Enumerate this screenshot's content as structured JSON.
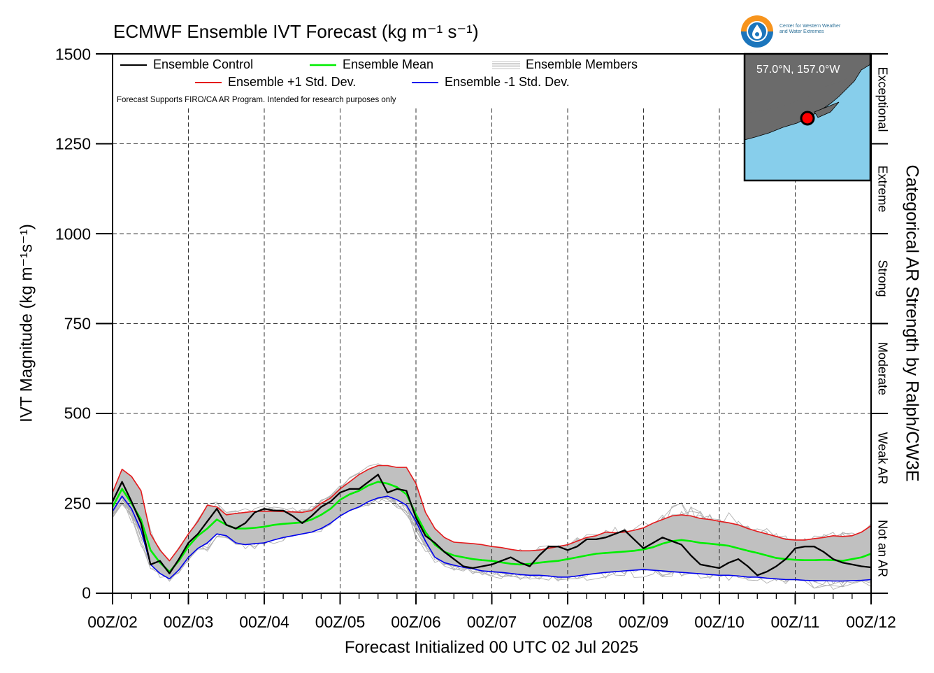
{
  "header": {
    "title": "ECMWF Ensemble IVT Forecast (kg m⁻¹ s⁻¹)",
    "right_axis_label": "Categorical AR Strength by Ralph/CW3E",
    "note": "Forecast Supports FIRO/CA AR Program. Intended for research purposes only"
  },
  "logo": {
    "text_line1": "Center for Western Weather",
    "text_line2": "and Water Extremes",
    "colors": {
      "ring": "#f7941d",
      "water": "#1b75bc"
    },
    "icon": "water-drop-icon"
  },
  "inset_map": {
    "location_label": "57.0°N, 157.0°W",
    "colors": {
      "ocean": "#87ceeb",
      "land": "#6b6b6b",
      "marker": "#ff0000"
    }
  },
  "categories": [
    "Not an AR",
    "Weak AR",
    "Moderate",
    "Strong",
    "Extreme",
    "Exceptional"
  ],
  "colors": {
    "control": "#000000",
    "mean": "#00ee00",
    "plus_std": "#e41a1c",
    "minus_std": "#0000ee",
    "members": "#b0b0b0",
    "spread_fill": "#c0c0c0"
  },
  "chart_data": {
    "type": "line",
    "title": "ECMWF Ensemble IVT Forecast (kg m⁻¹ s⁻¹)",
    "xlabel": "Forecast Initialized 00 UTC 02 Jul 2025",
    "ylabel": "IVT Magnitude (kg m⁻¹s⁻¹)",
    "ylim": [
      0,
      1500
    ],
    "yticks": [
      0,
      250,
      500,
      750,
      1000,
      1250,
      1500
    ],
    "xlim": [
      0,
      240
    ],
    "x_tick_hours": [
      0,
      24,
      48,
      72,
      96,
      120,
      144,
      168,
      192,
      216,
      240
    ],
    "x_tick_labels": [
      "00Z/02",
      "00Z/03",
      "00Z/04",
      "00Z/05",
      "00Z/06",
      "00Z/07",
      "00Z/08",
      "00Z/09",
      "00Z/10",
      "00Z/11",
      "00Z/12"
    ],
    "grid": true,
    "legend_placement": "top-left",
    "legend": [
      "Ensemble Control",
      "Ensemble Mean",
      "Ensemble Members",
      "Ensemble +1 Std. Dev.",
      "Ensemble -1 Std. Dev."
    ],
    "category_thresholds": [
      0,
      250,
      500,
      750,
      1000,
      1250,
      1500
    ],
    "lead_hours": [
      0,
      3,
      6,
      9,
      12,
      15,
      18,
      21,
      24,
      27,
      30,
      33,
      36,
      39,
      42,
      45,
      48,
      51,
      54,
      57,
      60,
      63,
      66,
      69,
      72,
      75,
      78,
      81,
      84,
      87,
      90,
      93,
      96,
      99,
      102,
      105,
      108,
      111,
      114,
      117,
      120,
      123,
      126,
      129,
      132,
      135,
      138,
      141,
      144,
      147,
      150,
      153,
      156,
      159,
      162,
      165,
      168,
      171,
      174,
      177,
      180,
      183,
      186,
      189,
      192,
      195,
      198,
      201,
      204,
      207,
      210,
      213,
      216,
      219,
      222,
      225,
      228,
      231,
      234,
      237,
      240
    ],
    "series": [
      {
        "name": "Ensemble Control",
        "values": [
          255,
          310,
          255,
          195,
          80,
          90,
          55,
          95,
          140,
          165,
          200,
          235,
          190,
          180,
          195,
          225,
          235,
          230,
          230,
          215,
          195,
          215,
          240,
          255,
          280,
          290,
          290,
          310,
          330,
          280,
          290,
          285,
          210,
          160,
          140,
          115,
          95,
          75,
          70,
          75,
          80,
          90,
          100,
          85,
          75,
          105,
          130,
          130,
          120,
          130,
          150,
          150,
          155,
          165,
          175,
          150,
          125,
          140,
          155,
          145,
          135,
          105,
          80,
          75,
          70,
          85,
          95,
          75,
          50,
          60,
          75,
          95,
          125,
          130,
          130,
          115,
          95,
          85,
          80,
          75,
          72
        ]
      },
      {
        "name": "Ensemble Mean",
        "values": [
          240,
          290,
          250,
          205,
          120,
          85,
          60,
          90,
          130,
          160,
          180,
          205,
          190,
          180,
          180,
          182,
          185,
          190,
          193,
          195,
          197,
          205,
          218,
          235,
          260,
          275,
          285,
          300,
          310,
          305,
          295,
          275,
          220,
          170,
          135,
          115,
          105,
          100,
          95,
          92,
          90,
          86,
          82,
          80,
          82,
          85,
          88,
          90,
          95,
          100,
          105,
          110,
          112,
          114,
          116,
          118,
          122,
          128,
          138,
          145,
          148,
          145,
          140,
          138,
          135,
          132,
          125,
          118,
          112,
          105,
          98,
          95,
          93,
          92,
          92,
          93,
          92,
          90,
          95,
          100,
          110
        ]
      },
      {
        "name": "Ensemble +1 Std. Dev.",
        "values": [
          280,
          345,
          325,
          285,
          165,
          120,
          90,
          125,
          165,
          200,
          245,
          240,
          218,
          222,
          225,
          228,
          228,
          228,
          227,
          226,
          225,
          230,
          250,
          265,
          290,
          310,
          330,
          345,
          355,
          355,
          350,
          350,
          305,
          225,
          180,
          155,
          142,
          140,
          138,
          135,
          130,
          127,
          122,
          118,
          118,
          120,
          125,
          130,
          135,
          145,
          155,
          160,
          170,
          168,
          170,
          175,
          182,
          195,
          205,
          215,
          218,
          215,
          208,
          205,
          200,
          196,
          190,
          180,
          172,
          165,
          158,
          150,
          148,
          148,
          152,
          155,
          160,
          158,
          160,
          170,
          188
        ]
      },
      {
        "name": "Ensemble -1 Std. Dev.",
        "values": [
          228,
          270,
          235,
          175,
          80,
          55,
          40,
          65,
          100,
          125,
          140,
          165,
          160,
          140,
          135,
          138,
          140,
          148,
          155,
          160,
          165,
          170,
          180,
          195,
          215,
          230,
          240,
          255,
          265,
          270,
          260,
          245,
          200,
          145,
          100,
          85,
          78,
          72,
          68,
          62,
          60,
          58,
          55,
          52,
          50,
          50,
          48,
          45,
          45,
          48,
          52,
          55,
          58,
          60,
          62,
          64,
          66,
          64,
          62,
          60,
          58,
          56,
          54,
          52,
          50,
          50,
          48,
          45,
          45,
          42,
          40,
          38,
          38,
          36,
          35,
          35,
          34,
          34,
          35,
          36,
          38
        ]
      }
    ]
  }
}
